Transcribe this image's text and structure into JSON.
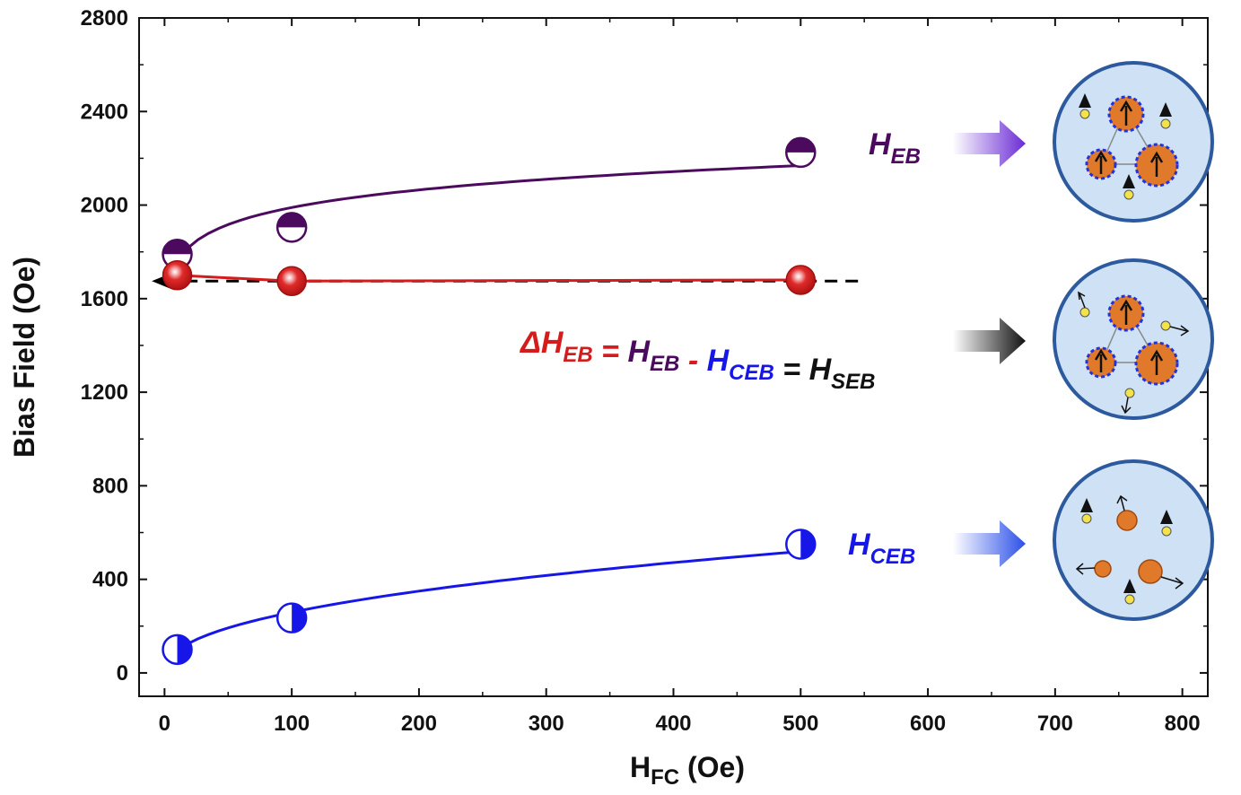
{
  "chart_data": {
    "type": "scatter",
    "title": "",
    "xlabel": "H",
    "xlabel_sub": "FC",
    "xlabel_unit": " (Oe)",
    "ylabel": "Bias Field (Oe)",
    "xlim": [
      -20,
      820
    ],
    "ylim": [
      -100,
      2800
    ],
    "xticks": [
      0,
      100,
      200,
      300,
      400,
      500,
      600,
      700,
      800
    ],
    "yticks": [
      0,
      400,
      800,
      1200,
      1600,
      2000,
      2400,
      2800
    ],
    "series": [
      {
        "name": "H_EB",
        "color": "#4b0a5e",
        "marker": "half-top",
        "x": [
          10,
          100,
          500
        ],
        "y": [
          1790,
          1905,
          2225
        ]
      },
      {
        "name": "ΔH_EB",
        "color": "#d41c1c",
        "marker": "sphere",
        "x": [
          10,
          100,
          500
        ],
        "y": [
          1700,
          1675,
          1680
        ]
      },
      {
        "name": "H_CEB",
        "color": "#1616e8",
        "marker": "half-right",
        "x": [
          10,
          100,
          500
        ],
        "y": [
          100,
          235,
          550
        ]
      }
    ],
    "reference_line": {
      "y": 1675,
      "x_from": -10,
      "x_to": 550,
      "style": "dashed",
      "color": "#000000",
      "arrow": "left"
    },
    "annotations": {
      "heb": {
        "main": "H",
        "sub": "EB",
        "color": "#4b0a5e"
      },
      "hceb": {
        "main": "H",
        "sub": "CEB",
        "color": "#1616e8"
      },
      "equation": [
        {
          "main": "ΔH",
          "sub": "EB",
          "color": "#d41c1c"
        },
        {
          "main": " = ",
          "sub": "",
          "color": "#d41c1c"
        },
        {
          "main": "H",
          "sub": "EB",
          "color": "#4b0a5e"
        },
        {
          "main": " - ",
          "sub": "",
          "color": "#d41c1c"
        },
        {
          "main": "H",
          "sub": "CEB",
          "color": "#1616e8"
        },
        {
          "main": " = ",
          "sub": "",
          "color": "#111111"
        },
        {
          "main": "H",
          "sub": "SEB",
          "color": "#111111"
        }
      ]
    },
    "schematic_arrows": [
      {
        "color": "#6a2bd4"
      },
      {
        "color": "#111111"
      },
      {
        "color": "#2b4fe8"
      }
    ]
  }
}
